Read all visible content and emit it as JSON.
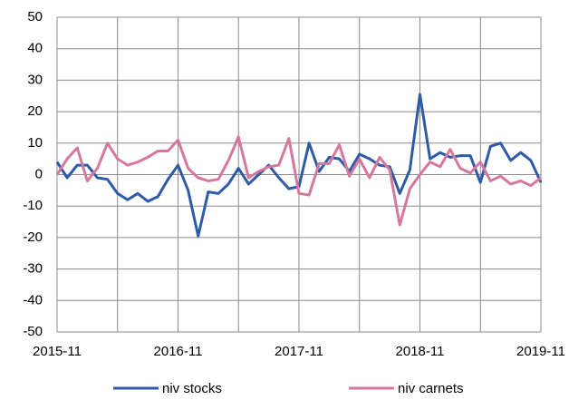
{
  "chart_data": {
    "type": "line",
    "categories": [
      "2015-11",
      null,
      null,
      null,
      null,
      null,
      null,
      null,
      null,
      null,
      null,
      null,
      "2016-11",
      null,
      null,
      null,
      null,
      null,
      null,
      null,
      null,
      null,
      null,
      null,
      "2017-11",
      null,
      null,
      null,
      null,
      null,
      null,
      null,
      null,
      null,
      null,
      null,
      "2018-11",
      null,
      null,
      null,
      null,
      null,
      null,
      null,
      null,
      null,
      null,
      null,
      "2019-11"
    ],
    "series": [
      {
        "name": "niv stocks",
        "color": "#2e5aa8",
        "values": [
          4,
          -1,
          3,
          3,
          -1,
          -1.5,
          -6,
          -8,
          -6,
          -8.5,
          -7,
          -1.5,
          3,
          -5,
          -19.5,
          -5.5,
          -6,
          -3,
          2,
          -3,
          0,
          3,
          -1,
          -4.5,
          -3.8,
          10,
          1,
          5.5,
          5,
          1,
          6.5,
          5,
          3,
          2.5,
          -6,
          1.5,
          25.5,
          5,
          7,
          5.5,
          6,
          6,
          -2.5,
          9,
          10,
          4.5,
          7,
          4.5,
          -2.5
        ]
      },
      {
        "name": "niv carnets",
        "color": "#d6779e",
        "values": [
          0,
          5,
          8.5,
          -2,
          2,
          10,
          5,
          3,
          4,
          5.5,
          7.5,
          7.5,
          11,
          2,
          -1,
          -2,
          -1.5,
          4.5,
          12,
          -1,
          1,
          2.5,
          3,
          11.5,
          -6,
          -6.5,
          3.5,
          3.5,
          9.5,
          -0.5,
          5,
          -1,
          5.5,
          1.5,
          -16,
          -4.5,
          0,
          4,
          2.5,
          8,
          2,
          0.5,
          4,
          -2,
          -0.5,
          -3,
          -2,
          -3.5,
          -1
        ]
      }
    ],
    "ylim": [
      -50,
      50
    ],
    "yticks": [
      -50,
      -40,
      -30,
      -20,
      -10,
      0,
      10,
      20,
      30,
      40,
      50
    ],
    "grid": true,
    "legend": "bottom"
  }
}
